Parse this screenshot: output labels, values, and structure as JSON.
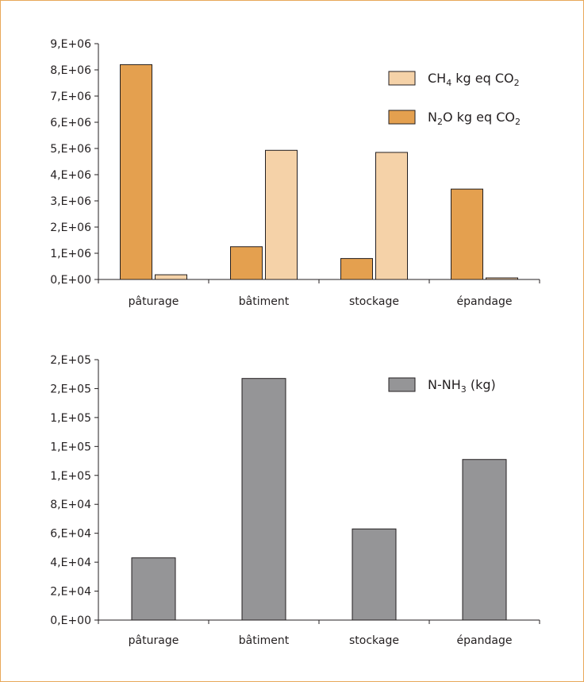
{
  "colors": {
    "frame_border": "#e8a85a",
    "axis": "#231f20",
    "ch4": "#f5d2a8",
    "n2o": "#e4a04f",
    "nh3": "#959597"
  },
  "chart_data": [
    {
      "type": "bar",
      "categories": [
        "pâturage",
        "bâtiment",
        "stockage",
        "épandage"
      ],
      "series": [
        {
          "name": "N2O kg eq CO2",
          "legend": {
            "a": "N",
            "sub1": "2",
            "b": "O kg eq CO",
            "sub2": "2"
          },
          "color": "#e4a04f",
          "values": [
            8200000,
            1250000,
            800000,
            3450000
          ]
        },
        {
          "name": "CH4 kg eq CO2",
          "legend": {
            "a": "CH",
            "sub1": "4",
            "b": " kg eq CO",
            "sub2": "2"
          },
          "color": "#f5d2a8",
          "values": [
            180000,
            4930000,
            4850000,
            60000
          ]
        }
      ],
      "y_ticks": [
        "0,E+00",
        "1,E+06",
        "2,E+06",
        "3,E+06",
        "4,E+06",
        "5,E+06",
        "6,E+06",
        "7,E+06",
        "8,E+06",
        "9,E+06"
      ],
      "ylim": [
        0,
        9000000
      ],
      "legend_order": [
        1,
        0
      ],
      "legend_position": "top-right",
      "grid": false
    },
    {
      "type": "bar",
      "categories": [
        "pâturage",
        "bâtiment",
        "stockage",
        "épandage"
      ],
      "series": [
        {
          "name": "N-NH3 (kg)",
          "legend": {
            "a": "N-NH",
            "sub1": "3",
            "b": " (kg)",
            "sub2": ""
          },
          "color": "#959597",
          "values": [
            43000,
            167000,
            63000,
            111000
          ]
        }
      ],
      "y_ticks": [
        "0,E+00",
        "2,E+04",
        "4,E+04",
        "6,E+04",
        "8,E+04",
        "1,E+05",
        "1,E+05",
        "1,E+05",
        "2,E+05",
        "2,E+05"
      ],
      "ylim": [
        0,
        180000
      ],
      "legend_order": [
        0
      ],
      "legend_position": "top-right",
      "grid": false
    }
  ]
}
